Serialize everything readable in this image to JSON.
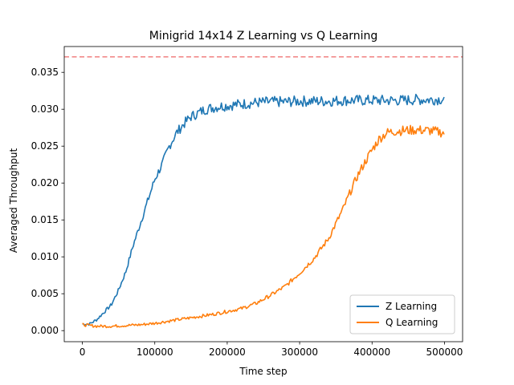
{
  "chart_data": {
    "type": "line",
    "title": "Minigrid 14x14 Z Learning vs Q Learning",
    "xlabel": "Time step",
    "ylabel": "Averaged Throughput",
    "xlim": [
      -25000,
      525000
    ],
    "ylim": [
      -0.0015,
      0.0385
    ],
    "xticks": [
      0,
      100000,
      200000,
      300000,
      400000,
      500000
    ],
    "xtick_labels": [
      "0",
      "100000",
      "200000",
      "300000",
      "400000",
      "500000"
    ],
    "yticks": [
      0.0,
      0.005,
      0.01,
      0.015,
      0.02,
      0.025,
      0.03,
      0.035
    ],
    "ytick_labels": [
      "0.000",
      "0.005",
      "0.010",
      "0.015",
      "0.020",
      "0.025",
      "0.030",
      "0.035"
    ],
    "grid": false,
    "legend_position": "lower-right",
    "reference_line": {
      "y": 0.0371,
      "style": "dashed",
      "color": "#f08080"
    },
    "series": [
      {
        "name": "Z Learning",
        "color": "#1f77b4",
        "x": [
          0,
          10000,
          20000,
          30000,
          40000,
          50000,
          60000,
          70000,
          80000,
          90000,
          100000,
          110000,
          120000,
          130000,
          140000,
          150000,
          160000,
          170000,
          180000,
          190000,
          200000,
          220000,
          240000,
          260000,
          280000,
          300000,
          320000,
          340000,
          360000,
          380000,
          400000,
          420000,
          440000,
          460000,
          480000,
          500000
        ],
        "y": [
          0.0009,
          0.0009,
          0.0015,
          0.0025,
          0.0035,
          0.0055,
          0.008,
          0.0115,
          0.0145,
          0.0175,
          0.0205,
          0.0225,
          0.025,
          0.0268,
          0.028,
          0.029,
          0.0295,
          0.03,
          0.0302,
          0.0304,
          0.0305,
          0.0307,
          0.0309,
          0.031,
          0.031,
          0.0311,
          0.0311,
          0.0311,
          0.0312,
          0.0312,
          0.0312,
          0.0312,
          0.0312,
          0.0313,
          0.0313,
          0.0314
        ]
      },
      {
        "name": "Q Learning",
        "color": "#ff7f0e",
        "x": [
          0,
          20000,
          40000,
          60000,
          80000,
          100000,
          120000,
          140000,
          160000,
          180000,
          200000,
          220000,
          240000,
          260000,
          280000,
          300000,
          320000,
          340000,
          350000,
          360000,
          370000,
          380000,
          390000,
          400000,
          410000,
          420000,
          430000,
          440000,
          460000,
          480000,
          500000
        ],
        "y": [
          0.0008,
          0.0006,
          0.0006,
          0.0007,
          0.0008,
          0.001,
          0.0013,
          0.0016,
          0.0019,
          0.0022,
          0.0026,
          0.003,
          0.0037,
          0.0048,
          0.006,
          0.0078,
          0.0098,
          0.0125,
          0.0145,
          0.0165,
          0.0188,
          0.021,
          0.0228,
          0.0245,
          0.026,
          0.0268,
          0.027,
          0.0271,
          0.0272,
          0.0271,
          0.0268
        ]
      }
    ]
  }
}
